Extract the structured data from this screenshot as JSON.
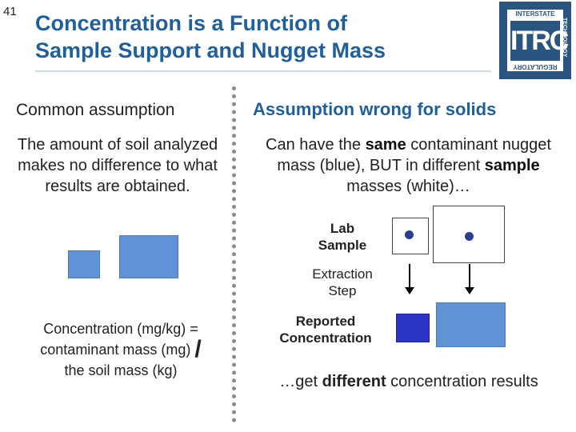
{
  "slide": {
    "number": "41",
    "title_line1": "Concentration is a Function of",
    "title_line2": "Sample Support and Nugget Mass"
  },
  "logo": {
    "text": "ITRC",
    "top_text": "INTERSTATE",
    "right_text": "TECHNOLOGY",
    "bottom_text": "REGULATORY",
    "left_text": "COUNCIL"
  },
  "left_column": {
    "heading": "Common assumption",
    "paragraph": "The amount of soil analyzed makes no difference to what results are obtained.",
    "formula_line1": "Concentration (mg/kg) =",
    "formula_line2": "contaminant mass (mg)",
    "formula_slash": "/",
    "formula_line3": "the soil mass (kg)"
  },
  "right_column": {
    "heading": "Assumption wrong for solids",
    "para_part1": "Can have the ",
    "para_bold1": "same",
    "para_part2": " contaminant nugget mass (blue), BUT in different ",
    "para_bold2": "sample",
    "para_part3": " masses (white)…",
    "lab_sample": "Lab Sample",
    "extraction_step": "Extraction Step",
    "reported_concentration": "Reported Concentration",
    "bottom_part1": "…get ",
    "bottom_bold": "different",
    "bottom_part2": " concentration results"
  },
  "colors": {
    "title": "#1f5f9a",
    "light_blue": "#5f93d5",
    "dark_blue": "#2d35c8",
    "nugget": "#2b3d8f"
  }
}
